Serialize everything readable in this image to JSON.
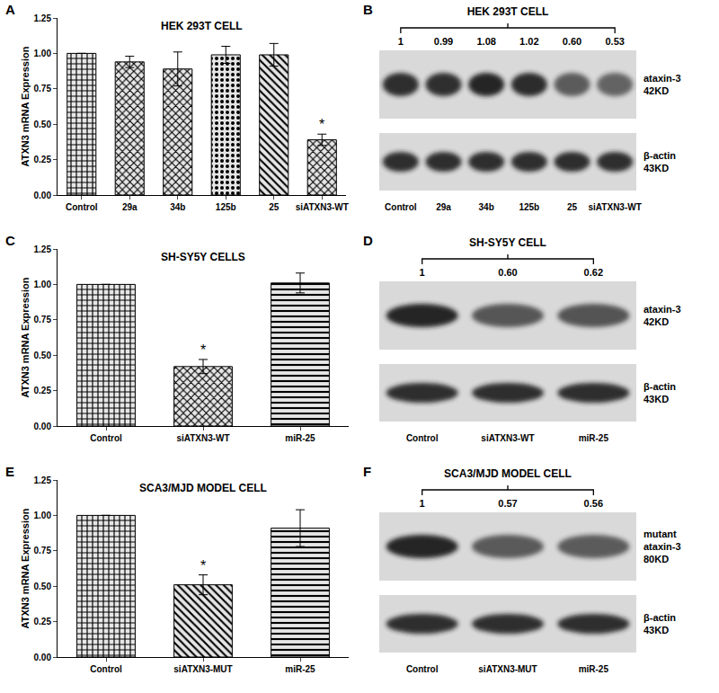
{
  "chart_data": [
    {
      "panel": "A",
      "type": "bar",
      "title": "HEK 293T CELL",
      "y_label": "ATXN3 mRNA Expression",
      "categories": [
        "Control",
        "29a",
        "34b",
        "125b",
        "25",
        "siATXN3-WT"
      ],
      "values": [
        1.0,
        0.94,
        0.89,
        0.99,
        0.99,
        0.39
      ],
      "errors": [
        0,
        0.04,
        0.12,
        0.06,
        0.08,
        0.04
      ],
      "color": "#e6e6e6",
      "grid": false,
      "ylim": [
        0,
        1.25
      ],
      "yticks": [
        {
          "value": 0,
          "label": "0.00"
        },
        {
          "value": 0.25,
          "label": "0.25"
        },
        {
          "value": 0.5,
          "label": "0.50"
        },
        {
          "value": 0.75,
          "label": "0.75"
        },
        {
          "value": 1,
          "label": "1.00"
        },
        {
          "value": 1.25,
          "label": "1.25"
        }
      ],
      "annotations": [
        {
          "category": "siATXN3-WT",
          "text": "*"
        }
      ]
    },
    {
      "panel": "C",
      "type": "bar",
      "title": "SH-SY5Y CELLS",
      "y_label": "ATXN3 mRNA Expression",
      "categories": [
        "Control",
        "siATXN3-WT",
        "miR-25"
      ],
      "values": [
        1.0,
        0.42,
        1.01
      ],
      "errors": [
        0,
        0.05,
        0.07
      ],
      "color": "#e6e6e6",
      "grid": false,
      "ylim": [
        0,
        1.25
      ],
      "yticks": [
        {
          "value": 0,
          "label": "0.00"
        },
        {
          "value": 0.25,
          "label": "0.25"
        },
        {
          "value": 0.5,
          "label": "0.50"
        },
        {
          "value": 0.75,
          "label": "0.75"
        },
        {
          "value": 1,
          "label": "1.00"
        },
        {
          "value": 1.25,
          "label": "1.25"
        }
      ],
      "annotations": [
        {
          "category": "siATXN3-WT",
          "text": "*"
        }
      ]
    },
    {
      "panel": "E",
      "type": "bar",
      "title": "SCA3/MJD MODEL CELL",
      "y_label": "ATXN3 mRNA Expression",
      "categories": [
        "Control",
        "siATXN3-MUT",
        "miR-25"
      ],
      "values": [
        1.0,
        0.51,
        0.91
      ],
      "errors": [
        0,
        0.07,
        0.13
      ],
      "color": "#e6e6e6",
      "grid": false,
      "ylim": [
        0,
        1.25
      ],
      "yticks": [
        {
          "value": 0,
          "label": "0.00"
        },
        {
          "value": 0.25,
          "label": "0.25"
        },
        {
          "value": 0.5,
          "label": "0.50"
        },
        {
          "value": 0.75,
          "label": "0.75"
        },
        {
          "value": 1,
          "label": "1.00"
        },
        {
          "value": 1.25,
          "label": "1.25"
        }
      ],
      "annotations": [
        {
          "category": "siATXN3-MUT",
          "text": "*"
        }
      ]
    }
  ],
  "blots": [
    {
      "panel": "B",
      "title": "HEK 293T CELL",
      "lanes": [
        "Control",
        "29a",
        "34b",
        "125b",
        "25",
        "siATXN3-WT"
      ],
      "values": [
        1,
        0.99,
        1.08,
        1.02,
        0.6,
        0.53
      ],
      "value_labels": [
        "1",
        "0.99",
        "1.08",
        "1.02",
        "0.60",
        "0.53"
      ],
      "bands": [
        {
          "label": [
            "ataxin-3",
            "42KD"
          ]
        },
        {
          "label": [
            "β-actin",
            "43KD"
          ]
        }
      ]
    },
    {
      "panel": "D",
      "title": "SH-SY5Y CELL",
      "lanes": [
        "Control",
        "siATXN3-WT",
        "miR-25"
      ],
      "values": [
        1,
        0.6,
        0.62
      ],
      "value_labels": [
        "1",
        "0.60",
        "0.62"
      ],
      "bands": [
        {
          "label": [
            "ataxin-3",
            "42KD"
          ]
        },
        {
          "label": [
            "β-actin",
            "43KD"
          ]
        }
      ]
    },
    {
      "panel": "F",
      "title": "SCA3/MJD MODEL CELL",
      "lanes": [
        "Control",
        "siATXN3-MUT",
        "miR-25"
      ],
      "values": [
        1,
        0.57,
        0.56
      ],
      "value_labels": [
        "1",
        "0.57",
        "0.56"
      ],
      "bands": [
        {
          "label": [
            "mutant",
            "ataxin-3",
            "80KD"
          ]
        },
        {
          "label": [
            "β-actin",
            "43KD"
          ]
        }
      ]
    }
  ]
}
